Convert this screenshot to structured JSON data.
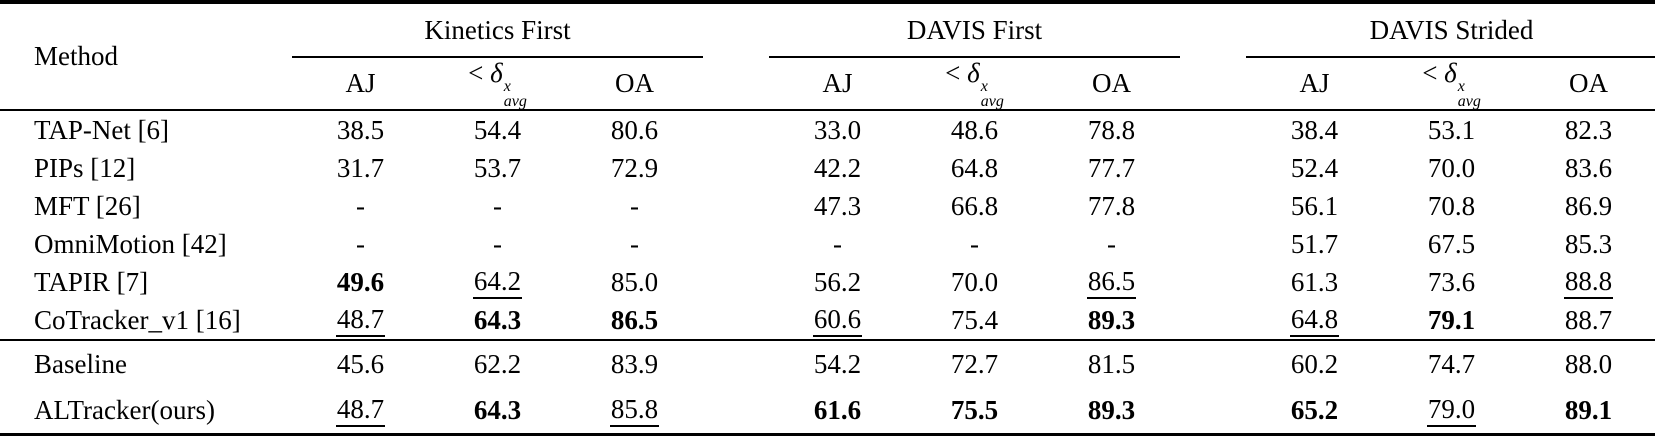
{
  "colors": {
    "background": "#ffffff",
    "text": "#000000",
    "rule": "#000000"
  },
  "table": {
    "method_header": "Method",
    "groups": [
      {
        "label": "Kinetics First"
      },
      {
        "label": "DAVIS First"
      },
      {
        "label": "DAVIS Strided"
      }
    ],
    "metrics": {
      "aj": "AJ",
      "delta": {
        "lt": "<",
        "symbol": "δ",
        "sup": "x",
        "sub": "avg"
      },
      "oa": "OA"
    },
    "comparison_rows": [
      {
        "method": "TAP-Net [6]",
        "cells": [
          {
            "text": "38.5",
            "style": "plain"
          },
          {
            "text": "54.4",
            "style": "plain"
          },
          {
            "text": "80.6",
            "style": "plain"
          },
          {
            "text": "33.0",
            "style": "plain"
          },
          {
            "text": "48.6",
            "style": "plain"
          },
          {
            "text": "78.8",
            "style": "plain"
          },
          {
            "text": "38.4",
            "style": "plain"
          },
          {
            "text": "53.1",
            "style": "plain"
          },
          {
            "text": "82.3",
            "style": "plain"
          }
        ]
      },
      {
        "method": "PIPs [12]",
        "cells": [
          {
            "text": "31.7",
            "style": "plain"
          },
          {
            "text": "53.7",
            "style": "plain"
          },
          {
            "text": "72.9",
            "style": "plain"
          },
          {
            "text": "42.2",
            "style": "plain"
          },
          {
            "text": "64.8",
            "style": "plain"
          },
          {
            "text": "77.7",
            "style": "plain"
          },
          {
            "text": "52.4",
            "style": "plain"
          },
          {
            "text": "70.0",
            "style": "plain"
          },
          {
            "text": "83.6",
            "style": "plain"
          }
        ]
      },
      {
        "method": "MFT [26]",
        "cells": [
          {
            "text": "-",
            "style": "plain"
          },
          {
            "text": "-",
            "style": "plain"
          },
          {
            "text": "-",
            "style": "plain"
          },
          {
            "text": "47.3",
            "style": "plain"
          },
          {
            "text": "66.8",
            "style": "plain"
          },
          {
            "text": "77.8",
            "style": "plain"
          },
          {
            "text": "56.1",
            "style": "plain"
          },
          {
            "text": "70.8",
            "style": "plain"
          },
          {
            "text": "86.9",
            "style": "plain"
          }
        ]
      },
      {
        "method": "OmniMotion [42]",
        "cells": [
          {
            "text": "-",
            "style": "plain"
          },
          {
            "text": "-",
            "style": "plain"
          },
          {
            "text": "-",
            "style": "plain"
          },
          {
            "text": "-",
            "style": "plain"
          },
          {
            "text": "-",
            "style": "plain"
          },
          {
            "text": "-",
            "style": "plain"
          },
          {
            "text": "51.7",
            "style": "plain"
          },
          {
            "text": "67.5",
            "style": "plain"
          },
          {
            "text": "85.3",
            "style": "plain"
          }
        ]
      },
      {
        "method": "TAPIR [7]",
        "cells": [
          {
            "text": "49.6",
            "style": "bold"
          },
          {
            "text": "64.2",
            "style": "underline"
          },
          {
            "text": "85.0",
            "style": "plain"
          },
          {
            "text": "56.2",
            "style": "plain"
          },
          {
            "text": "70.0",
            "style": "plain"
          },
          {
            "text": "86.5",
            "style": "underline"
          },
          {
            "text": "61.3",
            "style": "plain"
          },
          {
            "text": "73.6",
            "style": "plain"
          },
          {
            "text": "88.8",
            "style": "underline"
          }
        ]
      },
      {
        "method": "CoTracker_v1 [16]",
        "cells": [
          {
            "text": "48.7",
            "style": "underline"
          },
          {
            "text": "64.3",
            "style": "bold"
          },
          {
            "text": "86.5",
            "style": "bold"
          },
          {
            "text": "60.6",
            "style": "underline"
          },
          {
            "text": "75.4",
            "style": "plain"
          },
          {
            "text": "89.3",
            "style": "bold"
          },
          {
            "text": "64.8",
            "style": "underline"
          },
          {
            "text": "79.1",
            "style": "bold"
          },
          {
            "text": "88.7",
            "style": "plain"
          }
        ]
      }
    ],
    "ours_rows": [
      {
        "method": "Baseline",
        "cells": [
          {
            "text": "45.6",
            "style": "plain"
          },
          {
            "text": "62.2",
            "style": "plain"
          },
          {
            "text": "83.9",
            "style": "plain"
          },
          {
            "text": "54.2",
            "style": "plain"
          },
          {
            "text": "72.7",
            "style": "plain"
          },
          {
            "text": "81.5",
            "style": "plain"
          },
          {
            "text": "60.2",
            "style": "plain"
          },
          {
            "text": "74.7",
            "style": "plain"
          },
          {
            "text": "88.0",
            "style": "plain"
          }
        ]
      },
      {
        "method": "ALTracker(ours)",
        "cells": [
          {
            "text": "48.7",
            "style": "underline"
          },
          {
            "text": "64.3",
            "style": "bold"
          },
          {
            "text": "85.8",
            "style": "underline"
          },
          {
            "text": "61.6",
            "style": "bold"
          },
          {
            "text": "75.5",
            "style": "bold"
          },
          {
            "text": "89.3",
            "style": "bold"
          },
          {
            "text": "65.2",
            "style": "bold"
          },
          {
            "text": "79.0",
            "style": "underline"
          },
          {
            "text": "89.1",
            "style": "bold"
          }
        ]
      }
    ]
  }
}
